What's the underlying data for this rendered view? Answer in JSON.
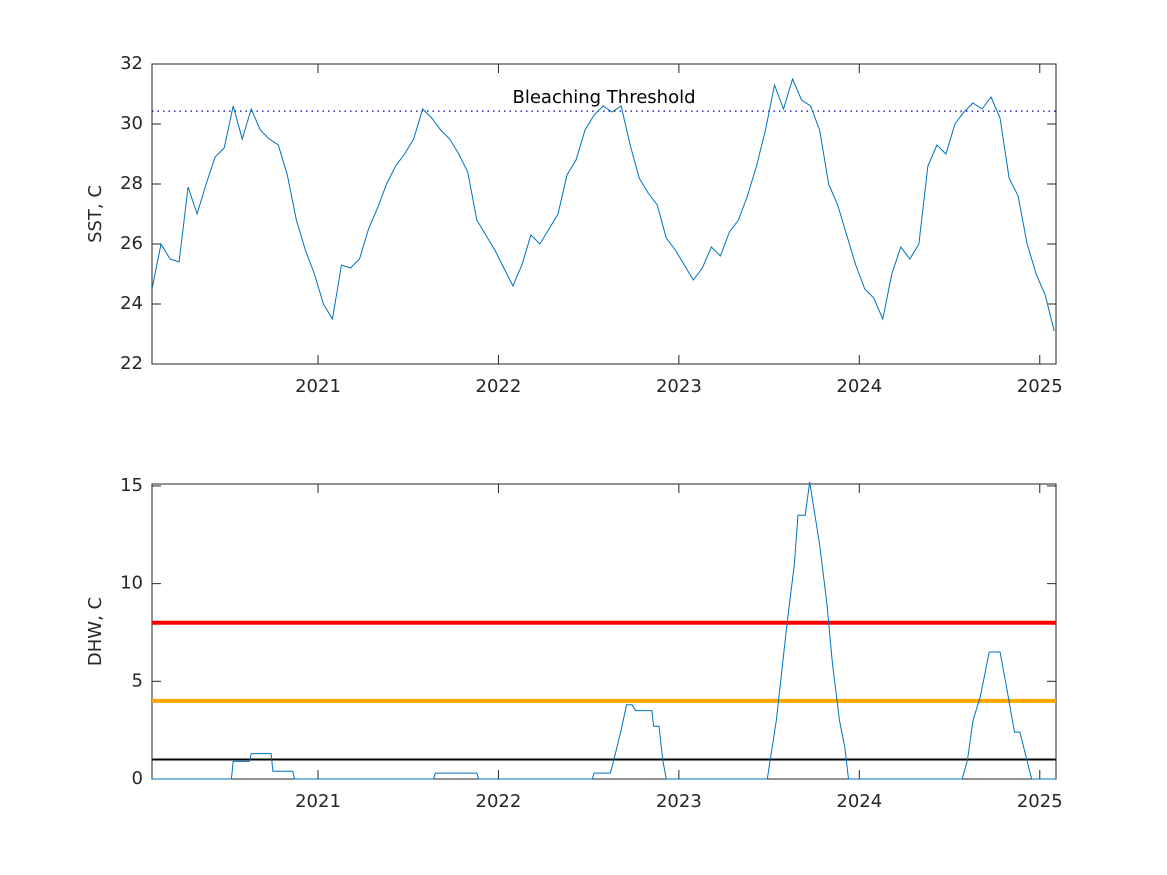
{
  "chart_data": [
    {
      "type": "line",
      "ylabel": "SST, C",
      "xlim": [
        2020.08,
        2025.09
      ],
      "ylim": [
        22,
        32
      ],
      "xticks": [
        2021,
        2022,
        2023,
        2024,
        2025
      ],
      "yticks": [
        22,
        24,
        26,
        28,
        30,
        32
      ],
      "threshold": {
        "value": 30.43,
        "label": "Bleaching Threshold",
        "color": "#0000cc"
      },
      "x": [
        2020.08,
        2020.13,
        2020.18,
        2020.23,
        2020.28,
        2020.33,
        2020.38,
        2020.43,
        2020.48,
        2020.53,
        2020.58,
        2020.63,
        2020.68,
        2020.73,
        2020.78,
        2020.83,
        2020.88,
        2020.93,
        2020.98,
        2021.03,
        2021.08,
        2021.13,
        2021.18,
        2021.23,
        2021.28,
        2021.33,
        2021.38,
        2021.43,
        2021.48,
        2021.53,
        2021.58,
        2021.63,
        2021.68,
        2021.73,
        2021.78,
        2021.83,
        2021.88,
        2021.93,
        2021.98,
        2022.03,
        2022.08,
        2022.13,
        2022.18,
        2022.23,
        2022.28,
        2022.33,
        2022.38,
        2022.43,
        2022.48,
        2022.53,
        2022.58,
        2022.63,
        2022.68,
        2022.73,
        2022.78,
        2022.83,
        2022.88,
        2022.93,
        2022.98,
        2023.03,
        2023.08,
        2023.13,
        2023.18,
        2023.23,
        2023.28,
        2023.33,
        2023.38,
        2023.43,
        2023.48,
        2023.53,
        2023.58,
        2023.63,
        2023.68,
        2023.73,
        2023.78,
        2023.83,
        2023.88,
        2023.93,
        2023.98,
        2024.03,
        2024.08,
        2024.13,
        2024.18,
        2024.23,
        2024.28,
        2024.33,
        2024.38,
        2024.43,
        2024.48,
        2024.53,
        2024.58,
        2024.63,
        2024.68,
        2024.73,
        2024.78,
        2024.83,
        2024.88,
        2024.93,
        2024.98,
        2025.03,
        2025.08
      ],
      "series": [
        {
          "color": "#0072bd",
          "values": [
            24.5,
            26.0,
            25.5,
            25.4,
            27.9,
            27.0,
            28.0,
            28.9,
            29.2,
            30.6,
            29.5,
            30.5,
            29.8,
            29.5,
            29.3,
            28.3,
            26.8,
            25.8,
            25.0,
            24.0,
            23.5,
            25.3,
            25.2,
            25.5,
            26.5,
            27.2,
            28.0,
            28.6,
            29.0,
            29.5,
            30.5,
            30.2,
            29.8,
            29.5,
            29.0,
            28.4,
            26.8,
            26.3,
            25.8,
            25.2,
            24.6,
            25.3,
            26.3,
            26.0,
            26.5,
            27.0,
            28.3,
            28.8,
            29.8,
            30.3,
            30.6,
            30.4,
            30.6,
            29.3,
            28.2,
            27.7,
            27.3,
            26.2,
            25.8,
            25.3,
            24.8,
            25.2,
            25.9,
            25.6,
            26.4,
            26.8,
            27.6,
            28.6,
            29.8,
            31.3,
            30.5,
            31.5,
            30.8,
            30.6,
            29.8,
            28.0,
            27.3,
            26.3,
            25.3,
            24.5,
            24.2,
            23.5,
            25.0,
            25.9,
            25.5,
            26.0,
            28.6,
            29.3,
            29.0,
            30.0,
            30.4,
            30.7,
            30.5,
            30.9,
            30.2,
            28.2,
            27.6,
            26.0,
            25.0,
            24.3,
            23.1
          ]
        }
      ]
    },
    {
      "type": "line",
      "ylabel": "DHW, C",
      "xlim": [
        2020.08,
        2025.09
      ],
      "ylim": [
        0,
        15.1
      ],
      "xticks": [
        2021,
        2022,
        2023,
        2024,
        2025
      ],
      "yticks": [
        0,
        5,
        10,
        15
      ],
      "hlines": [
        {
          "value": 8,
          "color": "#ff0000"
        },
        {
          "value": 4,
          "color": "#ffa500"
        },
        {
          "value": 1,
          "color": "#000000"
        }
      ],
      "x": [
        2020.08,
        2020.52,
        2020.53,
        2020.62,
        2020.63,
        2020.74,
        2020.75,
        2020.86,
        2020.87,
        2021.64,
        2021.65,
        2021.88,
        2021.89,
        2022.52,
        2022.53,
        2022.62,
        2022.64,
        2022.68,
        2022.71,
        2022.74,
        2022.76,
        2022.85,
        2022.86,
        2022.89,
        2022.91,
        2022.93,
        2023.49,
        2023.54,
        2023.6,
        2023.64,
        2023.66,
        2023.7,
        2023.725,
        2023.78,
        2023.82,
        2023.85,
        2023.89,
        2023.92,
        2023.94,
        2024.57,
        2024.6,
        2024.63,
        2024.67,
        2024.72,
        2024.78,
        2024.81,
        2024.86,
        2024.89,
        2024.955,
        2025.09
      ],
      "series": [
        {
          "color": "#0072bd",
          "values": [
            0,
            0,
            0.9,
            0.9,
            1.3,
            1.3,
            0.4,
            0.4,
            0,
            0,
            0.3,
            0.3,
            0,
            0,
            0.3,
            0.3,
            1.0,
            2.5,
            3.8,
            3.8,
            3.5,
            3.5,
            2.7,
            2.7,
            1.0,
            0,
            0,
            3,
            8,
            11,
            13.5,
            13.5,
            15.2,
            12,
            9,
            6,
            3,
            1.6,
            0,
            0,
            1.0,
            3,
            4.2,
            6.5,
            6.5,
            5,
            2.4,
            2.4,
            0,
            0
          ]
        }
      ]
    }
  ]
}
